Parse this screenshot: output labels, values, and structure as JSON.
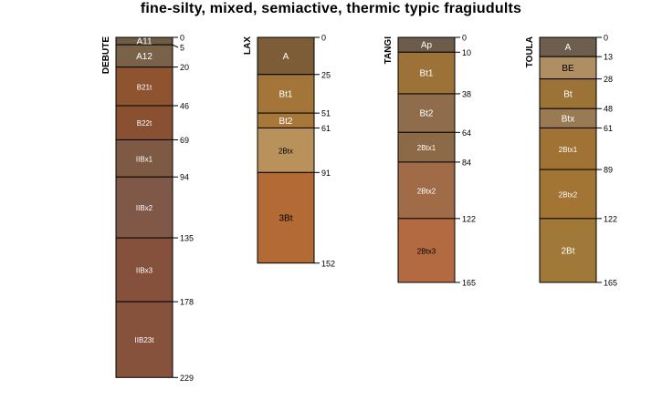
{
  "title": "fine-silty, mixed, semiactive, thermic typic fragiudults",
  "profiles": [
    {
      "name": "DEBUTE",
      "horizons": [
        {
          "name": "A11",
          "top": 0,
          "bottom": 5,
          "color": "#6e5c45",
          "label_color": "#ffffff"
        },
        {
          "name": "A12",
          "top": 5,
          "bottom": 20,
          "color": "#7a6249",
          "label_color": "#ffffff"
        },
        {
          "name": "B21t",
          "top": 20,
          "bottom": 46,
          "color": "#8e532f",
          "label_color": "#ffffff"
        },
        {
          "name": "B22t",
          "top": 46,
          "bottom": 69,
          "color": "#8a5032",
          "label_color": "#ffffff"
        },
        {
          "name": "IIBx1",
          "top": 69,
          "bottom": 94,
          "color": "#7e5a44",
          "label_color": "#ffffff"
        },
        {
          "name": "IIBx2",
          "top": 94,
          "bottom": 135,
          "color": "#805848",
          "label_color": "#ffffff"
        },
        {
          "name": "IIBx3",
          "top": 135,
          "bottom": 178,
          "color": "#85503c",
          "label_color": "#ffffff"
        },
        {
          "name": "IIB23t",
          "top": 178,
          "bottom": 229,
          "color": "#87523b",
          "label_color": "#ffffff"
        }
      ]
    },
    {
      "name": "LAX",
      "horizons": [
        {
          "name": "A",
          "top": 0,
          "bottom": 25,
          "color": "#7d5d38",
          "label_color": "#ffffff"
        },
        {
          "name": "Bt1",
          "top": 25,
          "bottom": 51,
          "color": "#a37538",
          "label_color": "#ffffff"
        },
        {
          "name": "Bt2",
          "top": 51,
          "bottom": 61,
          "color": "#a8773a",
          "label_color": "#ffffff"
        },
        {
          "name": "2Btx",
          "top": 61,
          "bottom": 91,
          "color": "#b8925a",
          "label_color": "#000000"
        },
        {
          "name": "3Bt",
          "top": 91,
          "bottom": 152,
          "color": "#b36a35",
          "label_color": "#000000"
        }
      ]
    },
    {
      "name": "TANGI",
      "horizons": [
        {
          "name": "Ap",
          "top": 0,
          "bottom": 10,
          "color": "#6d5c4c",
          "label_color": "#ffffff"
        },
        {
          "name": "Bt1",
          "top": 10,
          "bottom": 38,
          "color": "#9c7238",
          "label_color": "#ffffff"
        },
        {
          "name": "Bt2",
          "top": 38,
          "bottom": 64,
          "color": "#8e6c4c",
          "label_color": "#ffffff"
        },
        {
          "name": "2Btx1",
          "top": 64,
          "bottom": 84,
          "color": "#8c6a48",
          "label_color": "#ffffff"
        },
        {
          "name": "2Btx2",
          "top": 84,
          "bottom": 122,
          "color": "#a06c48",
          "label_color": "#ffffff"
        },
        {
          "name": "2Btx3",
          "top": 122,
          "bottom": 165,
          "color": "#b36a40",
          "label_color": "#000000"
        }
      ]
    },
    {
      "name": "TOULA",
      "horizons": [
        {
          "name": "A",
          "top": 0,
          "bottom": 13,
          "color": "#6e5e4e",
          "label_color": "#ffffff"
        },
        {
          "name": "BE",
          "top": 13,
          "bottom": 28,
          "color": "#b08e64",
          "label_color": "#000000"
        },
        {
          "name": "Bt",
          "top": 28,
          "bottom": 48,
          "color": "#9c7336",
          "label_color": "#ffffff"
        },
        {
          "name": "Btx",
          "top": 48,
          "bottom": 61,
          "color": "#9a7a55",
          "label_color": "#ffffff"
        },
        {
          "name": "2Btx1",
          "top": 61,
          "bottom": 89,
          "color": "#a07335",
          "label_color": "#ffffff"
        },
        {
          "name": "2Btx2",
          "top": 89,
          "bottom": 122,
          "color": "#a27535",
          "label_color": "#ffffff"
        },
        {
          "name": "2Bt",
          "top": 122,
          "bottom": 165,
          "color": "#a07838",
          "label_color": "#ffffff"
        }
      ]
    }
  ]
}
